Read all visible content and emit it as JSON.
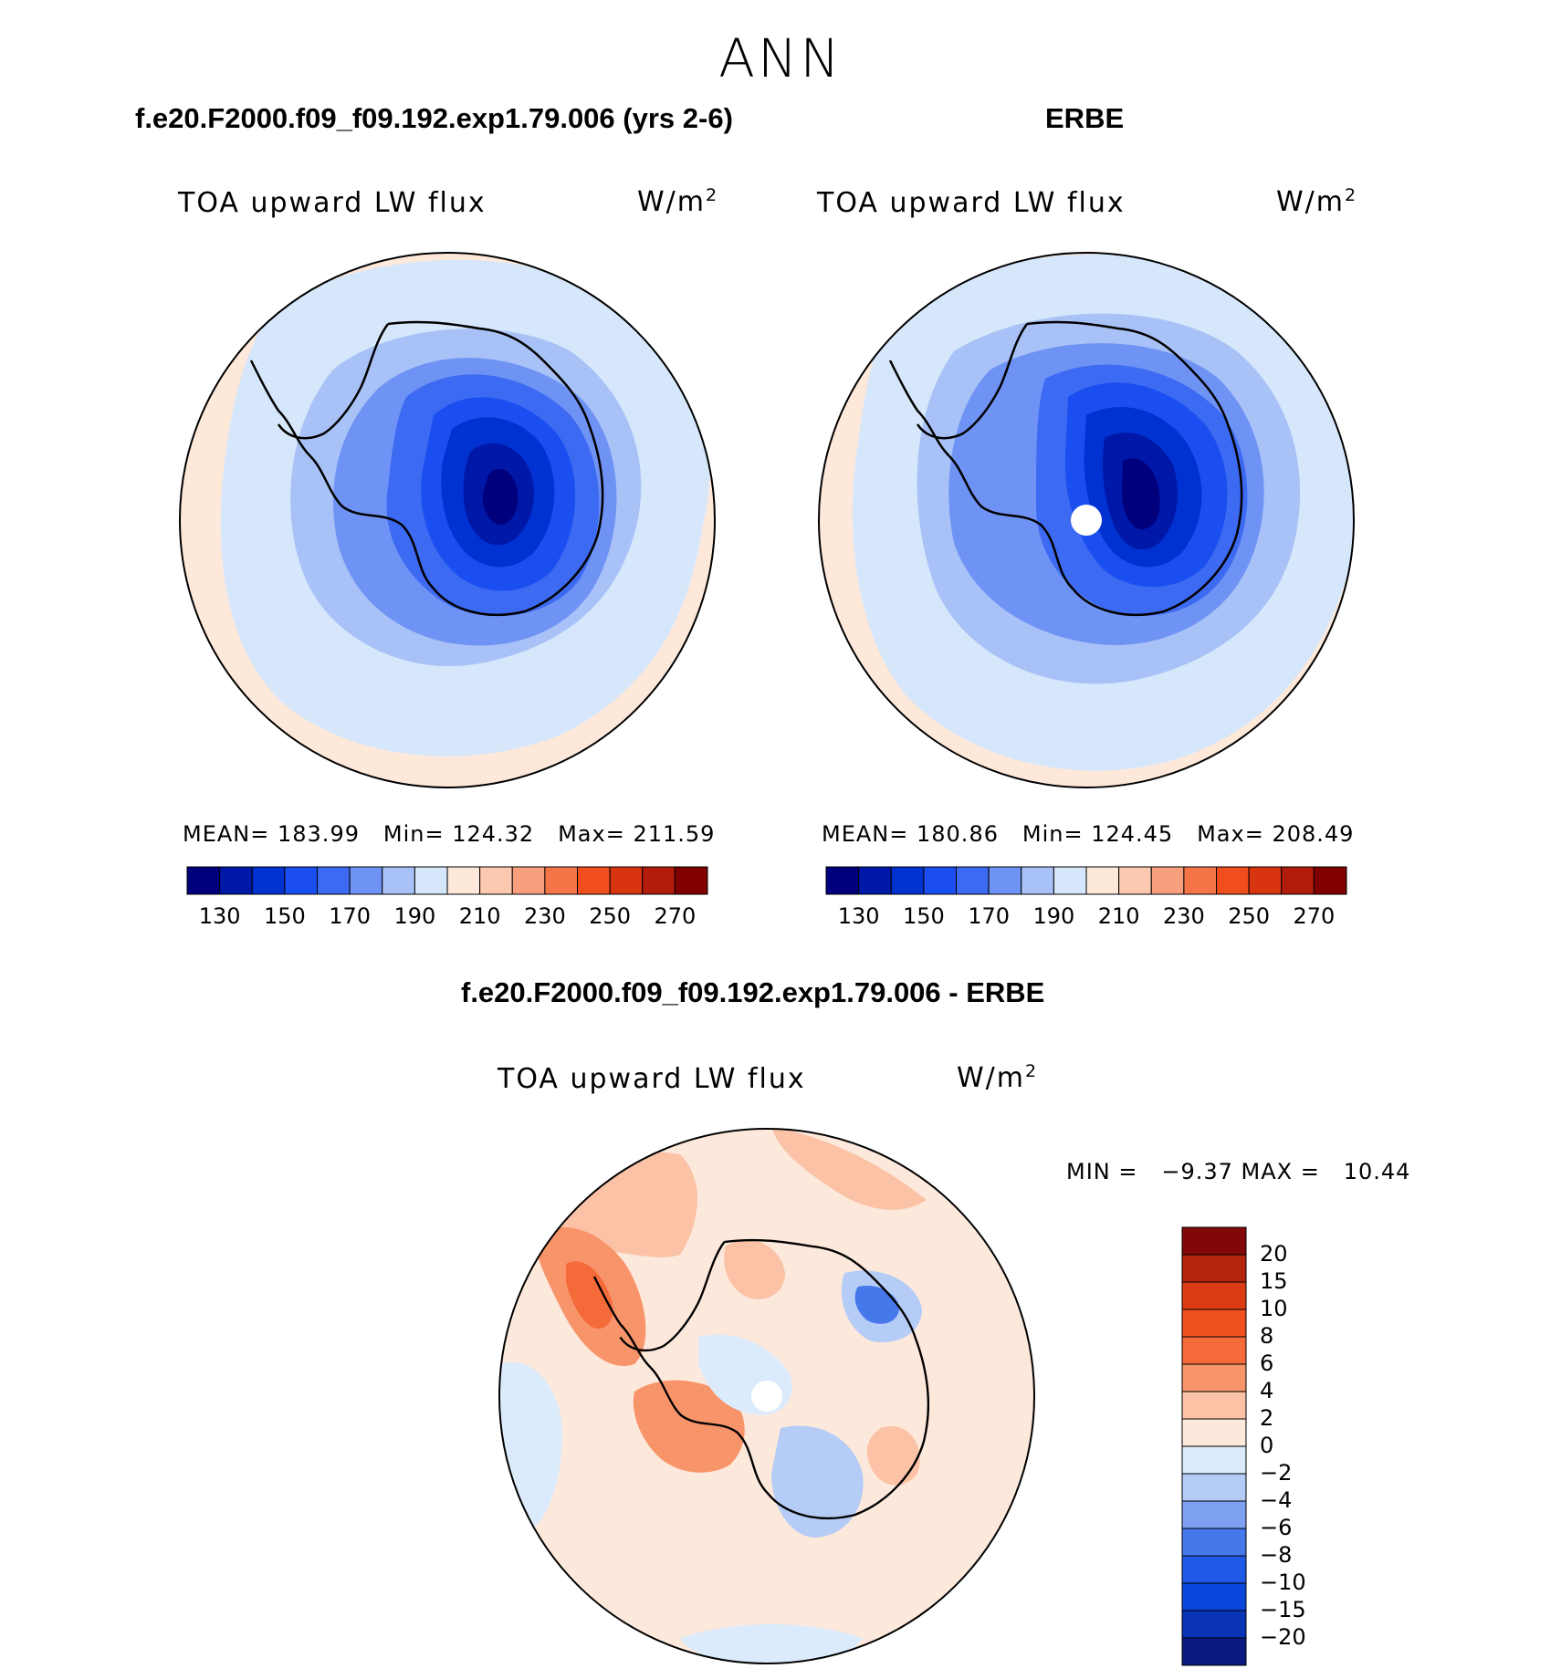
{
  "page": {
    "season_title": "ANN",
    "panels": [
      {
        "case_title": "f.e20.F2000.f09_f09.192.exp1.79.006 (yrs 2-6)",
        "variable_label": "TOA upward LW flux",
        "units_base": "W/m",
        "units_exp": "2",
        "stats": {
          "mean_label": "MEAN=",
          "mean": "183.99",
          "min_label": "Min=",
          "min": "124.32",
          "max_label": "Max=",
          "max": "211.59"
        }
      },
      {
        "case_title": "ERBE",
        "variable_label": "TOA upward LW flux",
        "units_base": "W/m",
        "units_exp": "2",
        "stats": {
          "mean_label": "MEAN=",
          "mean": "180.86",
          "min_label": "Min=",
          "min": "124.45",
          "max_label": "Max=",
          "max": "208.49"
        }
      }
    ],
    "diff_panel": {
      "case_title": "f.e20.F2000.f09_f09.192.exp1.79.006 - ERBE",
      "variable_label": "TOA upward LW flux",
      "units_base": "W/m",
      "units_exp": "2",
      "minmax_label": "MIN =   −9.37 MAX =   10.44"
    }
  },
  "colorbars": {
    "abs": {
      "colors": [
        "#00007d",
        "#0018a8",
        "#0032d2",
        "#1a4ef0",
        "#3d6af2",
        "#6f93f4",
        "#a8c2f7",
        "#d6e7fb",
        "#fde8da",
        "#fbc8b0",
        "#f8a07e",
        "#f47548",
        "#f04e1c",
        "#d93410",
        "#b21c0c",
        "#800000"
      ],
      "tick_labels": [
        "130",
        "150",
        "170",
        "190",
        "210",
        "230",
        "250",
        "270"
      ]
    },
    "diff": {
      "colors": [
        "#0a1a80",
        "#0a32b4",
        "#0a46dc",
        "#1e5ae6",
        "#4678ec",
        "#7ea0f0",
        "#b4ccf6",
        "#dcebfc",
        "#fde9dc",
        "#fbc2a6",
        "#f8946a",
        "#f46a38",
        "#f0501e",
        "#dc3c14",
        "#b4240c",
        "#820808"
      ],
      "tick_labels": [
        "20",
        "15",
        "10",
        "8",
        "6",
        "4",
        "2",
        "0",
        "−2",
        "−4",
        "−6",
        "−8",
        "−10",
        "−15",
        "−20"
      ]
    }
  }
}
